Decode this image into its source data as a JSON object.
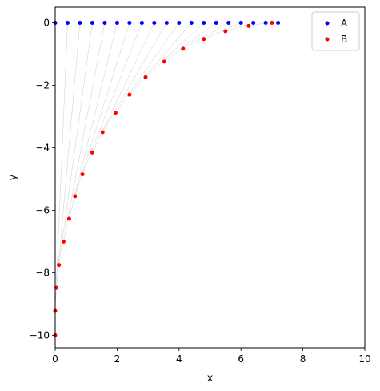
{
  "chart_data": {
    "type": "scatter",
    "xlabel": "x",
    "ylabel": "y",
    "xlim": [
      0,
      10
    ],
    "ylim": [
      -10.4,
      0.5
    ],
    "xticks": [
      0,
      2,
      4,
      6,
      8,
      10
    ],
    "yticks": [
      0,
      -2,
      -4,
      -6,
      -8,
      -10
    ],
    "grid": false,
    "legend_position": "top-right",
    "series": [
      {
        "name": "A",
        "color": "#0000ff",
        "x": [
          0.0,
          0.4,
          0.8,
          1.2,
          1.6,
          2.0,
          2.4,
          2.8,
          3.2,
          3.6,
          4.0,
          4.4,
          4.8,
          5.2,
          5.6,
          6.0,
          6.4,
          6.8,
          7.2
        ],
        "y": [
          0,
          0,
          0,
          0,
          0,
          0,
          0,
          0,
          0,
          0,
          0,
          0,
          0,
          0,
          0,
          0,
          0,
          0,
          0
        ]
      },
      {
        "name": "B",
        "color": "#ff0000",
        "x": [
          0.0,
          0.0,
          0.04,
          0.12,
          0.27,
          0.45,
          0.64,
          0.88,
          1.2,
          1.53,
          1.95,
          2.4,
          2.92,
          3.52,
          4.13,
          4.8,
          5.5,
          6.25,
          7.0
        ],
        "y": [
          -10.0,
          -9.22,
          -8.48,
          -7.75,
          -7.0,
          -6.27,
          -5.55,
          -4.85,
          -4.15,
          -3.5,
          -2.88,
          -2.3,
          -1.74,
          -1.24,
          -0.83,
          -0.52,
          -0.27,
          -0.1,
          0.0
        ]
      }
    ],
    "connectors": {
      "color": "#cccccc",
      "pairs": "A[i]-B[i]"
    }
  }
}
